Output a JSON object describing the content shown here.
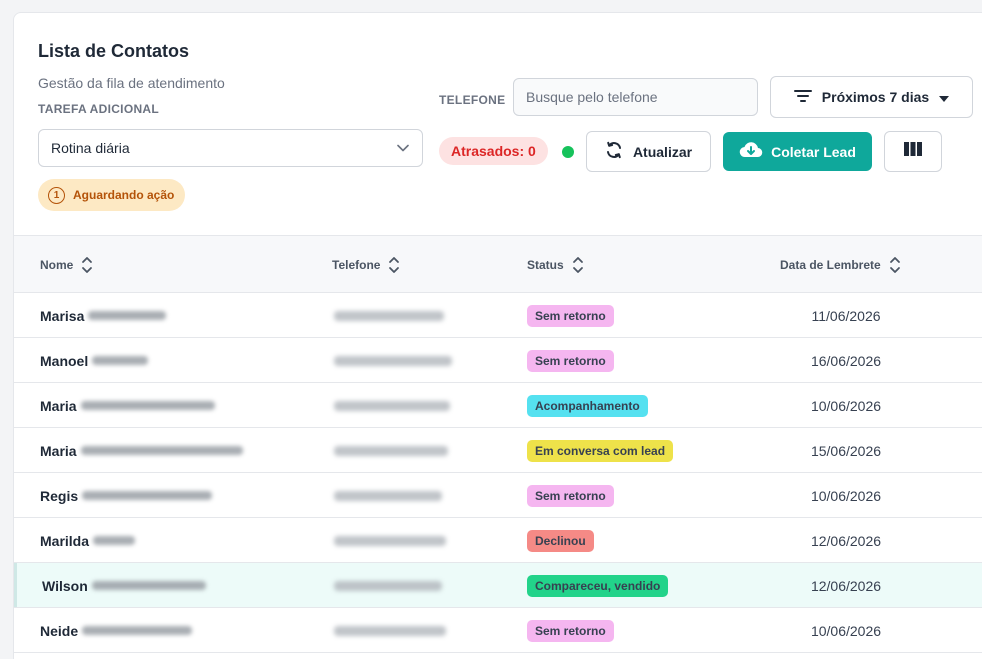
{
  "header": {
    "title": "Lista de Contatos",
    "subtitle": "Gestão da fila de atendimento",
    "task_label": "TAREFA ADICIONAL",
    "task_select_value": "Rotina diária",
    "pending_count": "1",
    "pending_label": "Aguardando ação"
  },
  "filters": {
    "phone_label": "TELEFONE",
    "phone_placeholder": "Busque pelo telefone",
    "period_label": "Próximos 7 dias"
  },
  "toolbar": {
    "late_label": "Atrasados: 0",
    "refresh_label": "Atualizar",
    "collect_lead_label": "Coletar Lead",
    "colors": {
      "accent": "#0fa89b",
      "online": "#16c25b",
      "late": "#dc2626"
    }
  },
  "table": {
    "columns": [
      "Nome",
      "Telefone",
      "Status",
      "Data de Lembrete"
    ],
    "rows": [
      {
        "first_name": "Marisa",
        "status": "Sem retorno",
        "status_color": "#f5b6f0",
        "date": "11/06/2026"
      },
      {
        "first_name": "Manoel",
        "status": "Sem retorno",
        "status_color": "#f5b6f0",
        "date": "16/06/2026"
      },
      {
        "first_name": "Maria",
        "status": "Acompanhamento",
        "status_color": "#55e1f0",
        "date": "10/06/2026"
      },
      {
        "first_name": "Maria",
        "status": "Em conversa com lead",
        "status_color": "#eee24a",
        "date": "15/06/2026"
      },
      {
        "first_name": "Regis",
        "status": "Sem retorno",
        "status_color": "#f5b6f0",
        "date": "10/06/2026"
      },
      {
        "first_name": "Marilda",
        "status": "Declinou",
        "status_color": "#f58a86",
        "date": "12/06/2026"
      },
      {
        "first_name": "Wilson",
        "status": "Compareceu, vendido",
        "status_color": "#22d38a",
        "date": "12/06/2026",
        "highlighted": true
      },
      {
        "first_name": "Neide",
        "status": "Sem retorno",
        "status_color": "#f5b6f0",
        "date": "10/06/2026"
      }
    ]
  }
}
